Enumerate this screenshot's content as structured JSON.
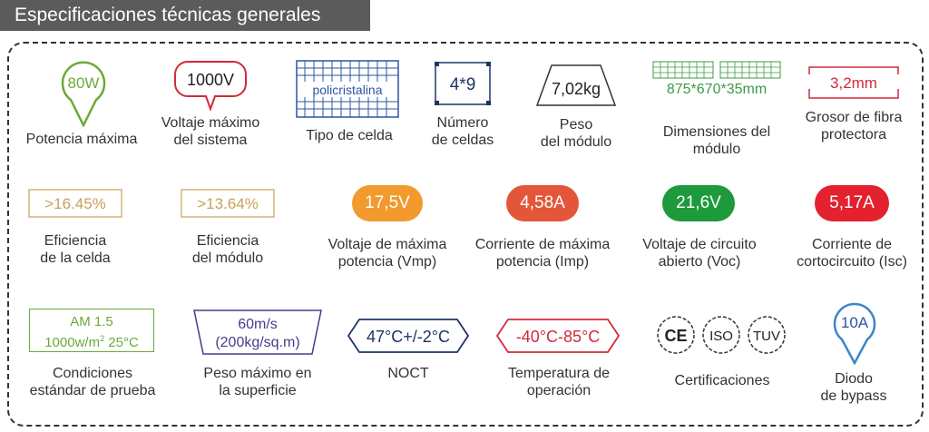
{
  "header": {
    "title": "Especificaciones técnicas generales"
  },
  "colors": {
    "green": "#6aaa3a",
    "red": "#d12a3a",
    "blue": "#2b55a3",
    "navy": "#1c3567",
    "gold": "#c9a05a",
    "orange": "#f29a2e",
    "red_orange": "#e4563a",
    "dark_green": "#1e9a3c",
    "crimson": "#e3212f",
    "purple": "#4a3a8c",
    "light_blue": "#3b86c8"
  },
  "specs": {
    "max_power": {
      "value": "80W",
      "label_lines": [
        "Potencia máxima"
      ]
    },
    "max_voltage": {
      "value": "1000V",
      "label_lines": [
        "Voltaje máximo",
        "del sistema"
      ]
    },
    "cell_type": {
      "value": "policristalina",
      "label_lines": [
        "Tipo de celda"
      ]
    },
    "cell_count": {
      "value": "4*9",
      "label_lines": [
        "Número",
        "de celdas"
      ]
    },
    "weight": {
      "value": "7,02kg",
      "label_lines": [
        "Peso",
        "del módulo"
      ]
    },
    "dimensions": {
      "value": "875*670*35mm",
      "label_lines": [
        "Dimensiones del",
        "módulo"
      ]
    },
    "glass": {
      "value": "3,2mm",
      "label_lines": [
        "Grosor de fibra",
        "protectora"
      ]
    },
    "cell_eff": {
      "value": ">16.45%",
      "label_lines": [
        "Eficiencia",
        "de la celda"
      ]
    },
    "module_eff": {
      "value": ">13.64%",
      "label_lines": [
        "Eficiencia",
        "del módulo"
      ]
    },
    "vmp": {
      "value": "17,5V",
      "label_lines": [
        "Voltaje de máxima",
        "potencia (Vmp)"
      ]
    },
    "imp": {
      "value": "4,58A",
      "label_lines": [
        "Corriente de máxima",
        "potencia (Imp)"
      ]
    },
    "voc": {
      "value": "21,6V",
      "label_lines": [
        "Voltaje de circuito",
        "abierto (Voc)"
      ]
    },
    "isc": {
      "value": "5,17A",
      "label_lines": [
        "Corriente de",
        "cortocircuito (Isc)"
      ]
    },
    "stc": {
      "line1": "AM 1.5",
      "line2_pre": "1000w/m",
      "line2_sup": "2",
      "line2_post": " 25°C",
      "label_lines": [
        "Condiciones",
        "estándar de prueba"
      ]
    },
    "load": {
      "line1": "60m/s",
      "line2": "(200kg/sq.m)",
      "label_lines": [
        "Peso máximo en",
        "la superficie"
      ]
    },
    "noct": {
      "value": "47°C+/-2°C",
      "label_lines": [
        "NOCT"
      ]
    },
    "temp": {
      "value": "-40°C-85°C",
      "label_lines": [
        "Temperatura de",
        "operación"
      ]
    },
    "certs": {
      "items": [
        "CE",
        "ISO",
        "TUV"
      ],
      "label_lines": [
        "Certificaciones"
      ]
    },
    "diode": {
      "value": "10A",
      "label_lines": [
        "Diodo",
        "de bypass"
      ]
    }
  }
}
